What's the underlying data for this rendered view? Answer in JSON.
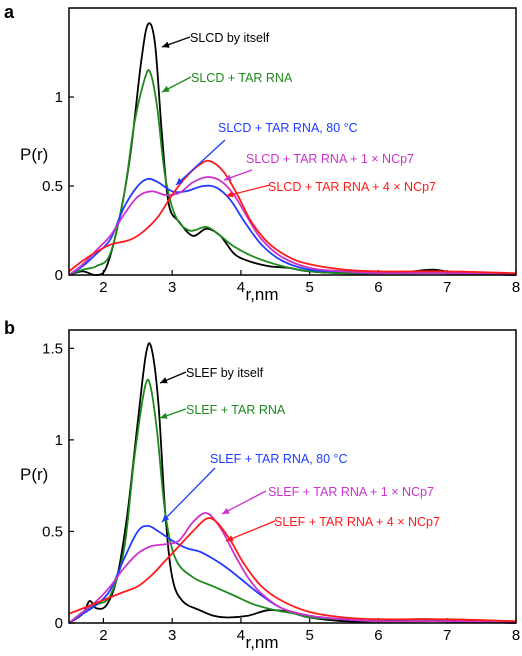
{
  "colors": {
    "black": "#000000",
    "green": "#1e8a1e",
    "blue": "#1f3cff",
    "magenta": "#cc33cc",
    "red": "#ff1a1a"
  },
  "chart_data": [
    {
      "type": "line",
      "panel_label": "a",
      "xlabel": "r,nm",
      "ylabel": "P(r)",
      "xlim": [
        1.5,
        8
      ],
      "ylim": [
        0,
        1.5
      ],
      "x_ticks": [
        "2",
        "3",
        "4",
        "5",
        "6",
        "7",
        "8"
      ],
      "y_ticks": [
        {
          "v": 0,
          "label": "0"
        },
        {
          "v": 0.5,
          "label": "0.5"
        },
        {
          "v": 1,
          "label": "1"
        }
      ],
      "series": [
        {
          "name": "SLCD by itself",
          "color": "#000000",
          "points": [
            [
              1.5,
              0.0
            ],
            [
              1.7,
              0.02
            ],
            [
              1.9,
              0.0
            ],
            [
              2.05,
              0.05
            ],
            [
              2.25,
              0.35
            ],
            [
              2.4,
              0.7
            ],
            [
              2.55,
              1.2
            ],
            [
              2.65,
              1.41
            ],
            [
              2.75,
              1.3
            ],
            [
              2.85,
              0.8
            ],
            [
              2.95,
              0.4
            ],
            [
              3.1,
              0.3
            ],
            [
              3.3,
              0.22
            ],
            [
              3.5,
              0.26
            ],
            [
              3.7,
              0.22
            ],
            [
              3.9,
              0.12
            ],
            [
              4.1,
              0.08
            ],
            [
              4.4,
              0.05
            ],
            [
              4.7,
              0.04
            ],
            [
              5.0,
              0.02
            ],
            [
              5.5,
              0.01
            ],
            [
              6.0,
              0.01
            ],
            [
              6.5,
              0.02
            ],
            [
              6.8,
              0.03
            ],
            [
              7.2,
              0.01
            ],
            [
              8.0,
              0.0
            ]
          ]
        },
        {
          "name": "SLCD + TAR RNA",
          "color": "#1e8a1e",
          "points": [
            [
              1.5,
              0.0
            ],
            [
              1.7,
              0.03
            ],
            [
              1.9,
              0.05
            ],
            [
              2.1,
              0.12
            ],
            [
              2.3,
              0.45
            ],
            [
              2.45,
              0.85
            ],
            [
              2.6,
              1.1
            ],
            [
              2.68,
              1.14
            ],
            [
              2.78,
              0.95
            ],
            [
              2.9,
              0.55
            ],
            [
              3.05,
              0.33
            ],
            [
              3.25,
              0.25
            ],
            [
              3.5,
              0.27
            ],
            [
              3.7,
              0.22
            ],
            [
              3.9,
              0.16
            ],
            [
              4.2,
              0.1
            ],
            [
              4.6,
              0.05
            ],
            [
              5.0,
              0.02
            ],
            [
              5.5,
              0.01
            ],
            [
              6.0,
              0.01
            ],
            [
              6.5,
              0.01
            ],
            [
              7.0,
              0.01
            ],
            [
              8.0,
              0.0
            ]
          ]
        },
        {
          "name": "SLCD + TAR RNA, 80 °C",
          "color": "#1f3cff",
          "points": [
            [
              1.5,
              0.0
            ],
            [
              1.7,
              0.05
            ],
            [
              1.9,
              0.12
            ],
            [
              2.1,
              0.2
            ],
            [
              2.3,
              0.38
            ],
            [
              2.5,
              0.5
            ],
            [
              2.65,
              0.54
            ],
            [
              2.8,
              0.52
            ],
            [
              3.0,
              0.47
            ],
            [
              3.2,
              0.47
            ],
            [
              3.45,
              0.5
            ],
            [
              3.65,
              0.49
            ],
            [
              3.85,
              0.42
            ],
            [
              4.05,
              0.3
            ],
            [
              4.3,
              0.17
            ],
            [
              4.6,
              0.08
            ],
            [
              5.0,
              0.03
            ],
            [
              5.5,
              0.02
            ],
            [
              6.0,
              0.01
            ],
            [
              7.0,
              0.01
            ],
            [
              8.0,
              0.0
            ]
          ]
        },
        {
          "name": "SLCD + TAR RNA + 1 × NCp7",
          "color": "#cc33cc",
          "points": [
            [
              1.5,
              0.0
            ],
            [
              1.7,
              0.06
            ],
            [
              1.9,
              0.14
            ],
            [
              2.1,
              0.22
            ],
            [
              2.3,
              0.34
            ],
            [
              2.5,
              0.44
            ],
            [
              2.7,
              0.47
            ],
            [
              2.9,
              0.45
            ],
            [
              3.1,
              0.46
            ],
            [
              3.3,
              0.52
            ],
            [
              3.5,
              0.55
            ],
            [
              3.7,
              0.53
            ],
            [
              3.9,
              0.45
            ],
            [
              4.1,
              0.32
            ],
            [
              4.3,
              0.2
            ],
            [
              4.6,
              0.1
            ],
            [
              5.0,
              0.04
            ],
            [
              5.5,
              0.02
            ],
            [
              6.0,
              0.01
            ],
            [
              7.0,
              0.01
            ],
            [
              8.0,
              0.0
            ]
          ]
        },
        {
          "name": "SLCD + TAR RNA + 4 × NCp7",
          "color": "#ff1a1a",
          "points": [
            [
              1.5,
              0.02
            ],
            [
              1.7,
              0.08
            ],
            [
              1.9,
              0.13
            ],
            [
              2.1,
              0.17
            ],
            [
              2.4,
              0.2
            ],
            [
              2.6,
              0.25
            ],
            [
              2.8,
              0.33
            ],
            [
              3.0,
              0.45
            ],
            [
              3.2,
              0.55
            ],
            [
              3.4,
              0.62
            ],
            [
              3.55,
              0.64
            ],
            [
              3.75,
              0.58
            ],
            [
              3.95,
              0.45
            ],
            [
              4.15,
              0.3
            ],
            [
              4.4,
              0.18
            ],
            [
              4.7,
              0.1
            ],
            [
              5.0,
              0.06
            ],
            [
              5.5,
              0.03
            ],
            [
              6.0,
              0.02
            ],
            [
              7.0,
              0.02
            ],
            [
              8.0,
              0.01
            ]
          ]
        }
      ],
      "annotations": [
        {
          "text": "SLCD by itself",
          "color": "#000000"
        },
        {
          "text": "SLCD + TAR RNA",
          "color": "#1e8a1e"
        },
        {
          "text": "SLCD + TAR RNA, 80 °C",
          "color": "#1f3cff"
        },
        {
          "text": "SLCD + TAR RNA + 1 × NCp7",
          "color": "#cc33cc"
        },
        {
          "text": "SLCD + TAR RNA + 4 × NCp7",
          "color": "#ff1a1a"
        }
      ]
    },
    {
      "type": "line",
      "panel_label": "b",
      "xlabel": "r,nm",
      "ylabel": "P(r)",
      "xlim": [
        1.5,
        8
      ],
      "ylim": [
        0,
        1.6
      ],
      "x_ticks": [
        "2",
        "3",
        "4",
        "5",
        "6",
        "7",
        "8"
      ],
      "y_ticks": [
        {
          "v": 0,
          "label": "0"
        },
        {
          "v": 0.5,
          "label": "0.5"
        },
        {
          "v": 1,
          "label": "1"
        },
        {
          "v": 1.5,
          "label": "1.5"
        }
      ],
      "series": [
        {
          "name": "SLEF by itself",
          "color": "#000000",
          "points": [
            [
              1.5,
              0.0
            ],
            [
              1.7,
              0.05
            ],
            [
              1.8,
              0.12
            ],
            [
              1.9,
              0.08
            ],
            [
              2.05,
              0.1
            ],
            [
              2.2,
              0.25
            ],
            [
              2.35,
              0.6
            ],
            [
              2.5,
              1.1
            ],
            [
              2.62,
              1.47
            ],
            [
              2.7,
              1.5
            ],
            [
              2.8,
              1.2
            ],
            [
              2.9,
              0.6
            ],
            [
              3.0,
              0.25
            ],
            [
              3.15,
              0.12
            ],
            [
              3.4,
              0.07
            ],
            [
              3.6,
              0.04
            ],
            [
              3.8,
              0.03
            ],
            [
              4.1,
              0.04
            ],
            [
              4.4,
              0.07
            ],
            [
              4.7,
              0.06
            ],
            [
              5.0,
              0.03
            ],
            [
              5.5,
              0.01
            ],
            [
              6.0,
              0.01
            ],
            [
              6.5,
              0.02
            ],
            [
              6.8,
              0.02
            ],
            [
              7.2,
              0.01
            ],
            [
              8.0,
              0.0
            ]
          ]
        },
        {
          "name": "SLEF + TAR RNA",
          "color": "#1e8a1e",
          "points": [
            [
              1.5,
              0.0
            ],
            [
              1.7,
              0.06
            ],
            [
              1.9,
              0.1
            ],
            [
              2.1,
              0.15
            ],
            [
              2.3,
              0.4
            ],
            [
              2.45,
              0.9
            ],
            [
              2.6,
              1.28
            ],
            [
              2.68,
              1.3
            ],
            [
              2.78,
              1.05
            ],
            [
              2.9,
              0.6
            ],
            [
              3.05,
              0.35
            ],
            [
              3.3,
              0.25
            ],
            [
              3.6,
              0.2
            ],
            [
              3.9,
              0.15
            ],
            [
              4.2,
              0.1
            ],
            [
              4.5,
              0.07
            ],
            [
              4.8,
              0.05
            ],
            [
              5.0,
              0.03
            ],
            [
              5.5,
              0.02
            ],
            [
              6.0,
              0.01
            ],
            [
              7.0,
              0.01
            ],
            [
              8.0,
              0.0
            ]
          ]
        },
        {
          "name": "SLEF + TAR RNA, 80 °C",
          "color": "#1f3cff",
          "points": [
            [
              1.5,
              0.0
            ],
            [
              1.7,
              0.05
            ],
            [
              1.9,
              0.1
            ],
            [
              2.1,
              0.18
            ],
            [
              2.3,
              0.35
            ],
            [
              2.5,
              0.5
            ],
            [
              2.65,
              0.53
            ],
            [
              2.8,
              0.5
            ],
            [
              3.0,
              0.45
            ],
            [
              3.2,
              0.41
            ],
            [
              3.4,
              0.39
            ],
            [
              3.6,
              0.35
            ],
            [
              3.8,
              0.3
            ],
            [
              4.0,
              0.24
            ],
            [
              4.3,
              0.15
            ],
            [
              4.6,
              0.08
            ],
            [
              5.0,
              0.04
            ],
            [
              5.5,
              0.02
            ],
            [
              6.0,
              0.01
            ],
            [
              7.0,
              0.01
            ],
            [
              8.0,
              0.0
            ]
          ]
        },
        {
          "name": "SLEF + TAR RNA + 1 × NCp7",
          "color": "#cc33cc",
          "points": [
            [
              1.5,
              0.0
            ],
            [
              1.7,
              0.06
            ],
            [
              1.9,
              0.12
            ],
            [
              2.1,
              0.2
            ],
            [
              2.3,
              0.3
            ],
            [
              2.5,
              0.38
            ],
            [
              2.7,
              0.42
            ],
            [
              2.9,
              0.43
            ],
            [
              3.1,
              0.45
            ],
            [
              3.3,
              0.55
            ],
            [
              3.5,
              0.6
            ],
            [
              3.7,
              0.52
            ],
            [
              3.9,
              0.38
            ],
            [
              4.1,
              0.25
            ],
            [
              4.3,
              0.16
            ],
            [
              4.6,
              0.08
            ],
            [
              5.0,
              0.04
            ],
            [
              5.5,
              0.02
            ],
            [
              6.0,
              0.01
            ],
            [
              7.0,
              0.01
            ],
            [
              8.0,
              0.0
            ]
          ]
        },
        {
          "name": "SLEF + TAR RNA + 4 × NCp7",
          "color": "#ff1a1a",
          "points": [
            [
              1.5,
              0.05
            ],
            [
              1.7,
              0.08
            ],
            [
              1.9,
              0.11
            ],
            [
              2.1,
              0.14
            ],
            [
              2.3,
              0.17
            ],
            [
              2.5,
              0.2
            ],
            [
              2.7,
              0.26
            ],
            [
              2.9,
              0.34
            ],
            [
              3.1,
              0.42
            ],
            [
              3.3,
              0.5
            ],
            [
              3.5,
              0.57
            ],
            [
              3.65,
              0.55
            ],
            [
              3.85,
              0.45
            ],
            [
              4.05,
              0.32
            ],
            [
              4.3,
              0.2
            ],
            [
              4.6,
              0.12
            ],
            [
              5.0,
              0.06
            ],
            [
              5.5,
              0.03
            ],
            [
              6.0,
              0.02
            ],
            [
              7.0,
              0.02
            ],
            [
              8.0,
              0.01
            ]
          ]
        }
      ],
      "annotations": [
        {
          "text": "SLEF by itself",
          "color": "#000000"
        },
        {
          "text": "SLEF + TAR RNA",
          "color": "#1e8a1e"
        },
        {
          "text": "SLEF + TAR RNA, 80 °C",
          "color": "#1f3cff"
        },
        {
          "text": "SLEF + TAR RNA + 1 × NCp7",
          "color": "#cc33cc"
        },
        {
          "text": "SLEF + TAR RNA + 4 × NCp7",
          "color": "#ff1a1a"
        }
      ]
    }
  ]
}
